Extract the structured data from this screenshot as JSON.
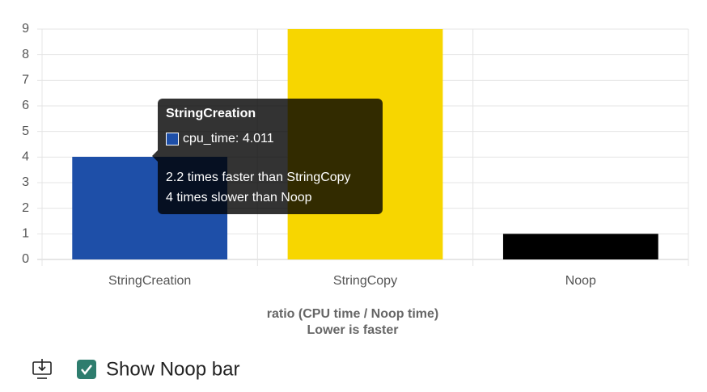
{
  "chart_data": {
    "type": "bar",
    "categories": [
      "StringCreation",
      "StringCopy",
      "Noop"
    ],
    "values": [
      4.011,
      9,
      1
    ],
    "colors": [
      "#1e4fa8",
      "#f7d600",
      "#000000"
    ],
    "ylim": [
      0,
      9
    ],
    "yticks": [
      0,
      1,
      2,
      3,
      4,
      5,
      6,
      7,
      8,
      9
    ],
    "grid": true,
    "x_axis_title": [
      "ratio (CPU time / Noop time)",
      "Lower is faster"
    ],
    "tooltip": {
      "title": "StringCreation",
      "label": "cpu_time: 4.011",
      "lines": [
        "2.2 times faster than StringCopy",
        "4 times slower than Noop"
      ]
    }
  },
  "controls": {
    "checkbox_label": "Show Noop bar",
    "checked": true
  }
}
